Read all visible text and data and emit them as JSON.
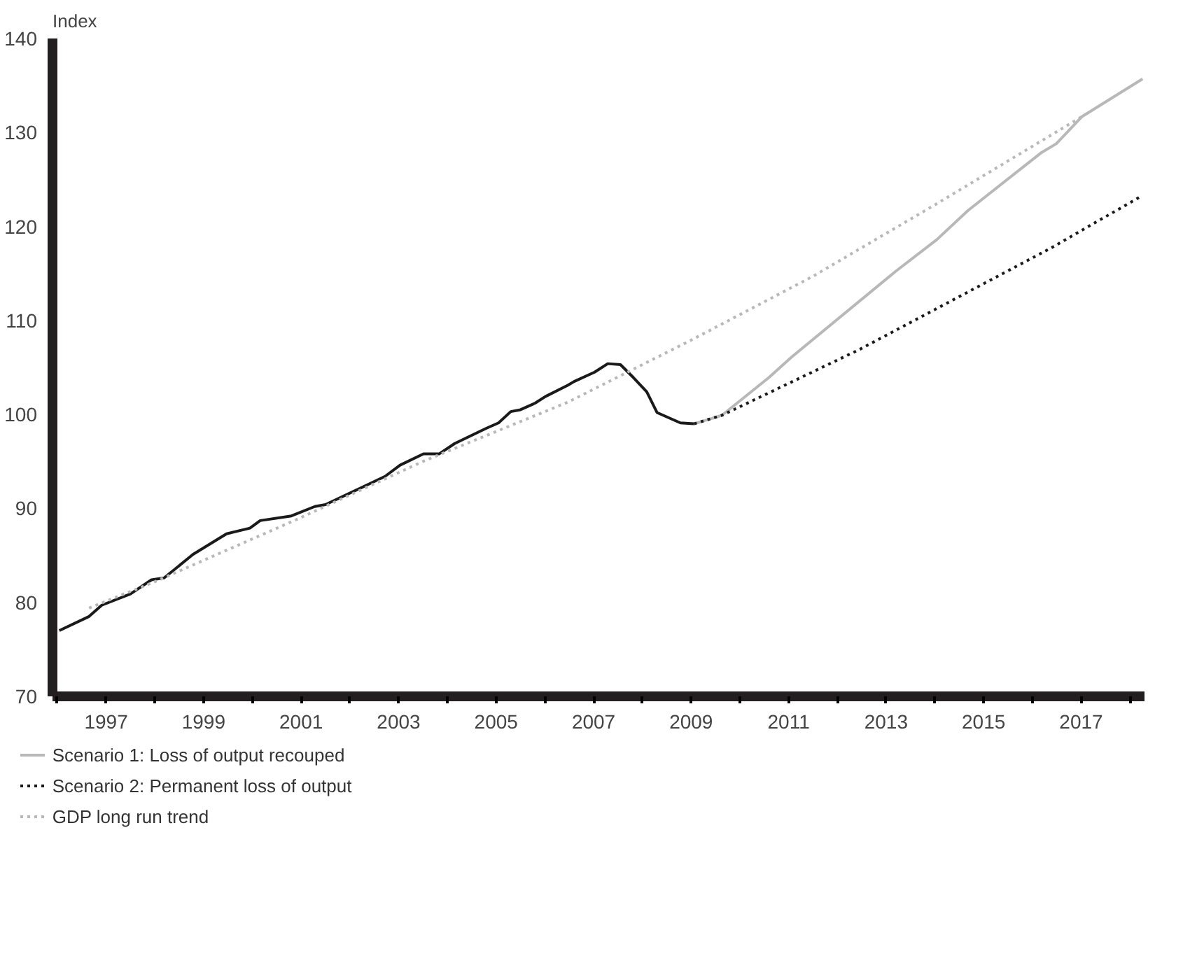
{
  "chart_data": {
    "type": "line",
    "ylabel": "Index",
    "xlim": [
      1995.9,
      2018.3
    ],
    "ylim": [
      70,
      140
    ],
    "xticks": [
      {
        "value": 1996,
        "label": null
      },
      1997,
      {
        "value": 1998,
        "label": null
      },
      1999,
      {
        "value": 2000,
        "label": null
      },
      2001,
      {
        "value": 2002,
        "label": null
      },
      2003,
      {
        "value": 2004,
        "label": null
      },
      2005,
      {
        "value": 2006,
        "label": null
      },
      2007,
      {
        "value": 2008,
        "label": null
      },
      2009,
      {
        "value": 2010,
        "label": null
      },
      2011,
      {
        "value": 2012,
        "label": null
      },
      2013,
      {
        "value": 2014,
        "label": null
      },
      2015,
      {
        "value": 2016,
        "label": null
      },
      2017,
      {
        "value": 2018,
        "label": null
      }
    ],
    "yticks": [
      70,
      80,
      90,
      100,
      110,
      120,
      130,
      140
    ],
    "grid": false,
    "legend": "bottom",
    "marker": "none",
    "series": [
      {
        "color": "#1a1a1a",
        "line_style": "solid",
        "x": [
          1996.04,
          1996.65,
          1996.91,
          1997.5,
          1997.93,
          1998.19,
          1998.78,
          1999.47,
          1999.95,
          2000.16,
          2000.8,
          2001.28,
          2001.5,
          2002.72,
          2003.03,
          2003.51,
          2003.83,
          2004.15,
          2004.79,
          2005.05,
          2005.3,
          2005.5,
          2005.8,
          2006.01,
          2006.47,
          2006.6,
          2007.02,
          2007.29,
          2007.55,
          2007.82,
          2008.09,
          2008.3,
          2008.78,
          2009.06
        ],
        "values": [
          77.0,
          78.5,
          79.7,
          80.9,
          82.4,
          82.6,
          85.1,
          87.3,
          87.9,
          88.7,
          89.2,
          90.2,
          90.4,
          93.4,
          94.6,
          95.8,
          95.8,
          96.9,
          98.5,
          99.1,
          100.3,
          100.5,
          101.2,
          101.9,
          103.1,
          103.5,
          104.5,
          105.4,
          105.3,
          103.9,
          102.4,
          100.2,
          99.1,
          99.0
        ]
      },
      {
        "name": "Scenario 1: Loss of output recouped",
        "color": "#b8b8b8",
        "line_style": "solid",
        "x": [
          2009.06,
          2009.63,
          2010.59,
          2011.06,
          2013.19,
          2014.04,
          2014.68,
          2016.17,
          2016.49,
          2017.02,
          2018.26
        ],
        "values": [
          99.0,
          99.9,
          103.9,
          106.1,
          115.2,
          118.6,
          121.7,
          127.8,
          128.8,
          131.7,
          135.7
        ]
      },
      {
        "name": "Scenario 2: Permanent loss of output",
        "color": "#1a1a1a",
        "line_style": "dotted",
        "x": [
          2009.06,
          2009.63,
          2012.45,
          2016.38,
          2018.26
        ],
        "values": [
          99.0,
          99.9,
          106.9,
          117.7,
          123.3
        ]
      },
      {
        "name": "GDP long run trend",
        "color": "#b8b8b8",
        "line_style": "dotted",
        "x": [
          1996.65,
          1998,
          2000.9,
          2003.5,
          2006.47,
          2009,
          2011.5,
          2014,
          2017.02
        ],
        "values": [
          79.4,
          82.2,
          88.8,
          95.0,
          101.3,
          107.9,
          114.7,
          122.3,
          131.7
        ]
      }
    ]
  }
}
